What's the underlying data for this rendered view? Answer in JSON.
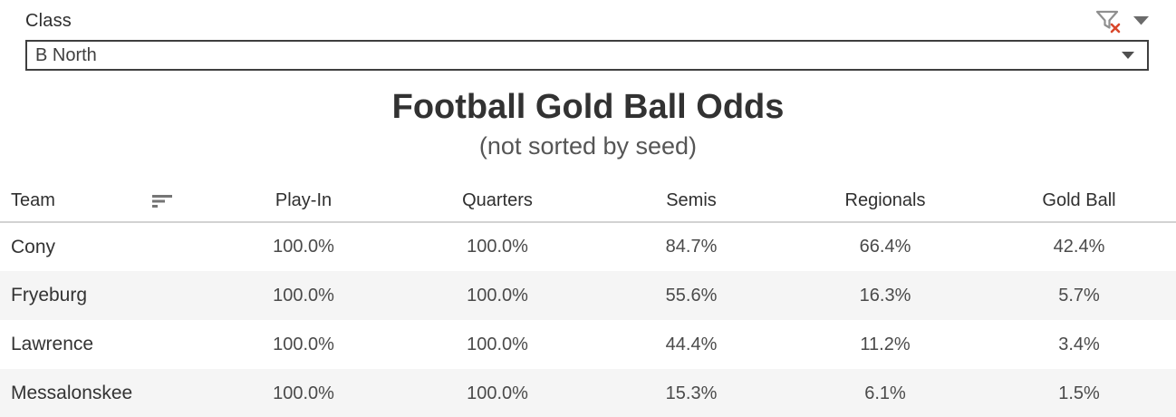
{
  "filter": {
    "label": "Class",
    "value": "B North"
  },
  "titles": {
    "title": "Football Gold Ball Odds",
    "subtitle": "(not sorted by seed)"
  },
  "table": {
    "columns": [
      "Team",
      "Play-In",
      "Quarters",
      "Semis",
      "Regionals",
      "Gold Ball"
    ],
    "rows": [
      {
        "team": "Cony",
        "values": [
          "100.0%",
          "100.0%",
          "84.7%",
          "66.4%",
          "42.4%"
        ]
      },
      {
        "team": "Fryeburg",
        "values": [
          "100.0%",
          "100.0%",
          "55.6%",
          "16.3%",
          "5.7%"
        ]
      },
      {
        "team": "Lawrence",
        "values": [
          "100.0%",
          "100.0%",
          "44.4%",
          "11.2%",
          "3.4%"
        ]
      },
      {
        "team": "Messalonskee",
        "values": [
          "100.0%",
          "100.0%",
          "15.3%",
          "6.1%",
          "1.5%"
        ]
      }
    ]
  },
  "icons": {
    "clear_filter": "filter-x-icon",
    "filter_menu": "caret-down-icon",
    "select_caret": "caret-down-icon",
    "team_sort": "sort-descending-icon"
  },
  "colors": {
    "accent_red": "#d9472b",
    "stripe": "#f5f5f5",
    "select_border": "#3f3f3f",
    "header_rule": "#d2d2d2",
    "text_primary": "#323232",
    "text_secondary": "#555555",
    "icon_gray": "#8f8f8f"
  }
}
